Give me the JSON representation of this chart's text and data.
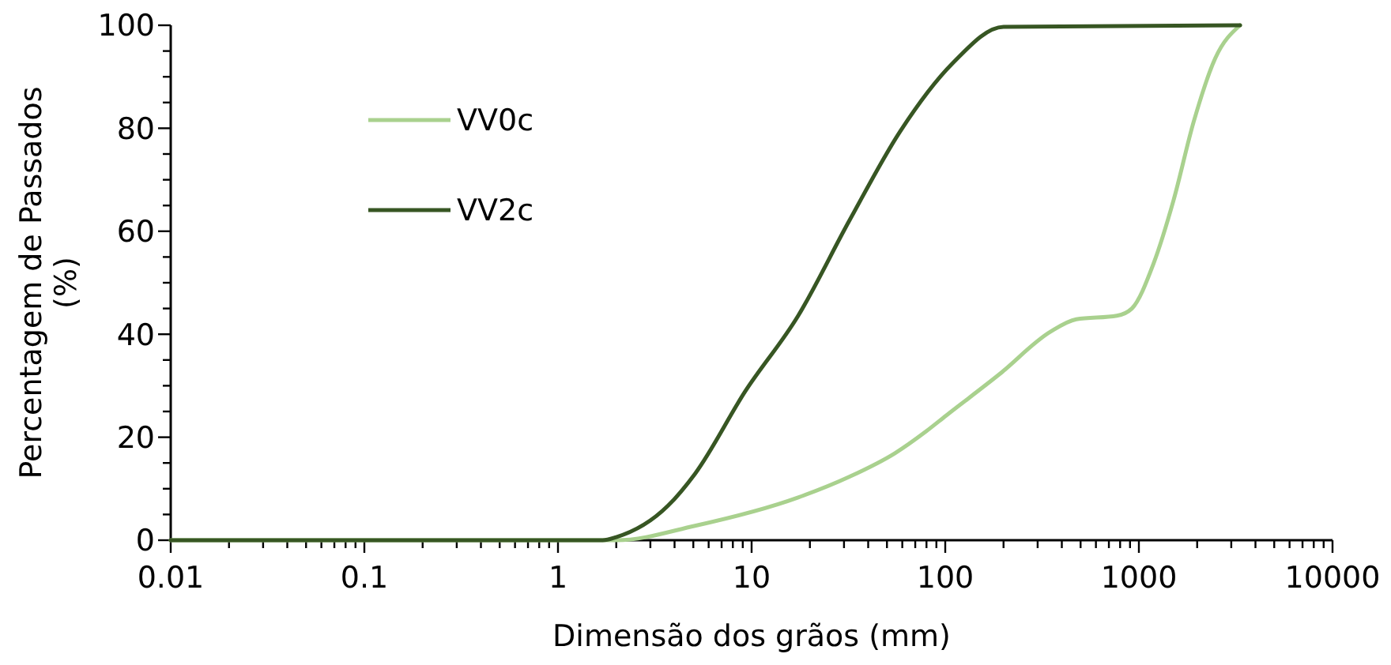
{
  "chart_data": {
    "type": "line",
    "xlabel": "Dimensão dos grãos (mm)",
    "ylabel": "Percentagem de Passados (%)",
    "log": "x",
    "xlim": [
      0.01,
      10000
    ],
    "ylim": [
      0,
      100
    ],
    "xticks": [
      0.01,
      {
        "value": 0.02,
        "label": null
      },
      {
        "value": 0.03,
        "label": null
      },
      {
        "value": 0.04,
        "label": null
      },
      {
        "value": 0.05,
        "label": null
      },
      {
        "value": 0.06,
        "label": null
      },
      {
        "value": 0.07,
        "label": null
      },
      {
        "value": 0.08,
        "label": null
      },
      {
        "value": 0.09,
        "label": null
      },
      0.1,
      {
        "value": 0.2,
        "label": null
      },
      {
        "value": 0.3,
        "label": null
      },
      {
        "value": 0.4,
        "label": null
      },
      {
        "value": 0.5,
        "label": null
      },
      {
        "value": 0.6,
        "label": null
      },
      {
        "value": 0.7,
        "label": null
      },
      {
        "value": 0.8,
        "label": null
      },
      {
        "value": 0.9,
        "label": null
      },
      1,
      {
        "value": 2,
        "label": null
      },
      {
        "value": 3,
        "label": null
      },
      {
        "value": 4,
        "label": null
      },
      {
        "value": 5,
        "label": null
      },
      {
        "value": 6,
        "label": null
      },
      {
        "value": 7,
        "label": null
      },
      {
        "value": 8,
        "label": null
      },
      {
        "value": 9,
        "label": null
      },
      10,
      {
        "value": 20,
        "label": null
      },
      {
        "value": 30,
        "label": null
      },
      {
        "value": 40,
        "label": null
      },
      {
        "value": 50,
        "label": null
      },
      {
        "value": 60,
        "label": null
      },
      {
        "value": 70,
        "label": null
      },
      {
        "value": 80,
        "label": null
      },
      {
        "value": 90,
        "label": null
      },
      100,
      {
        "value": 200,
        "label": null
      },
      {
        "value": 300,
        "label": null
      },
      {
        "value": 400,
        "label": null
      },
      {
        "value": 500,
        "label": null
      },
      {
        "value": 600,
        "label": null
      },
      {
        "value": 700,
        "label": null
      },
      {
        "value": 800,
        "label": null
      },
      {
        "value": 900,
        "label": null
      },
      1000,
      {
        "value": 2000,
        "label": null
      },
      {
        "value": 3000,
        "label": null
      },
      {
        "value": 4000,
        "label": null
      },
      {
        "value": 5000,
        "label": null
      },
      {
        "value": 6000,
        "label": null
      },
      {
        "value": 7000,
        "label": null
      },
      {
        "value": 8000,
        "label": null
      },
      {
        "value": 9000,
        "label": null
      },
      10000
    ],
    "yticks": [
      0,
      {
        "value": 5,
        "label": null
      },
      {
        "value": 10,
        "label": null
      },
      {
        "value": 15,
        "label": null
      },
      20,
      {
        "value": 25,
        "label": null
      },
      {
        "value": 30,
        "label": null
      },
      {
        "value": 35,
        "label": null
      },
      40,
      {
        "value": 45,
        "label": null
      },
      {
        "value": 50,
        "label": null
      },
      {
        "value": 55,
        "label": null
      },
      60,
      {
        "value": 65,
        "label": null
      },
      {
        "value": 70,
        "label": null
      },
      {
        "value": 75,
        "label": null
      },
      80,
      {
        "value": 85,
        "label": null
      },
      {
        "value": 90,
        "label": null
      },
      {
        "value": 95,
        "label": null
      },
      100
    ],
    "grid": false,
    "legend": "top left",
    "marker": "none",
    "line_style": "solid",
    "series": [
      {
        "name": "VV0c",
        "color": "#a9d18e",
        "x": [
          0.01,
          1.7,
          2.0,
          5.1,
          17.4,
          31.9,
          55,
          80,
          101,
          190,
          350,
          475,
          770,
          920,
          1190,
          1510,
          1920,
          2480,
          3330
        ],
        "values": [
          0,
          0,
          0,
          2.8,
          8.3,
          12.3,
          16.9,
          21.2,
          24.2,
          32.2,
          40.5,
          42.9,
          43.6,
          45,
          53.7,
          66,
          81.3,
          93.6,
          100
        ]
      },
      {
        "name": "VV2c",
        "color": "#375623",
        "x": [
          0.01,
          1.7,
          2.0,
          3.7,
          5.1,
          9.3,
          17.4,
          31.9,
          58.5,
          109,
          200,
          3330
        ],
        "values": [
          0,
          0,
          0.6,
          6.7,
          12.9,
          29,
          43.6,
          62,
          79.4,
          92.6,
          99.7,
          100
        ]
      }
    ]
  }
}
